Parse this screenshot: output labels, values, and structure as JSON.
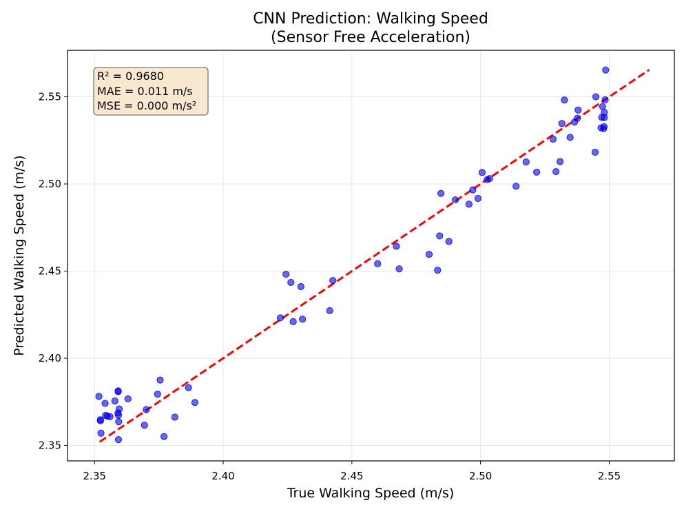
{
  "chart_data": {
    "type": "scatter",
    "title": "CNN Prediction: Walking Speed",
    "subtitle": "(Sensor Free Acceleration)",
    "xlabel": "True Walking Speed (m/s)",
    "ylabel": "Predicted Walking Speed (m/s)",
    "xlim": [
      2.3395,
      2.5753
    ],
    "ylim": [
      2.3411,
      2.5767
    ],
    "xticks": [
      2.35,
      2.4,
      2.45,
      2.5,
      2.55
    ],
    "xtick_labels": [
      "2.35",
      "2.40",
      "2.45",
      "2.50",
      "2.55"
    ],
    "yticks": [
      2.35,
      2.4,
      2.45,
      2.5,
      2.55
    ],
    "ytick_labels": [
      "2.35",
      "2.40",
      "2.45",
      "2.50",
      "2.55"
    ],
    "grid": true,
    "point_color": "#0000ff",
    "point_edge_color": "#0000cc",
    "line_color": "#ff0000",
    "reference_line": {
      "style": "dashed",
      "from": [
        2.352,
        2.352
      ],
      "to": [
        2.5655,
        2.5655
      ]
    },
    "stats_box": [
      "R² = 0.9680",
      "MAE = 0.011 m/s",
      "MSE = 0.000 m/s²"
    ],
    "stats_box_colors": {
      "fill": "#f7e8cf",
      "border": "#777777"
    },
    "points": [
      [
        2.3517,
        2.3781
      ],
      [
        2.3523,
        2.3647
      ],
      [
        2.3523,
        2.3641
      ],
      [
        2.3525,
        2.357
      ],
      [
        2.3541,
        2.3741
      ],
      [
        2.3543,
        2.3672
      ],
      [
        2.355,
        2.3668
      ],
      [
        2.356,
        2.3665
      ],
      [
        2.3579,
        2.3755
      ],
      [
        2.3591,
        2.3686
      ],
      [
        2.3592,
        2.3813
      ],
      [
        2.3592,
        2.3808
      ],
      [
        2.3593,
        2.3673
      ],
      [
        2.3594,
        2.3636
      ],
      [
        2.3596,
        2.3709
      ],
      [
        2.3593,
        2.3533
      ],
      [
        2.363,
        2.3767
      ],
      [
        2.3694,
        2.3616
      ],
      [
        2.3701,
        2.3705
      ],
      [
        2.3745,
        2.3794
      ],
      [
        2.3755,
        2.3875
      ],
      [
        2.377,
        2.3551
      ],
      [
        2.3812,
        2.3662
      ],
      [
        2.3865,
        2.3831
      ],
      [
        2.389,
        2.3746
      ],
      [
        2.4222,
        2.4232
      ],
      [
        2.4244,
        2.4482
      ],
      [
        2.4263,
        2.4435
      ],
      [
        2.4272,
        2.421
      ],
      [
        2.4302,
        2.4411
      ],
      [
        2.4308,
        2.4224
      ],
      [
        2.4414,
        2.4273
      ],
      [
        2.4426,
        2.4446
      ],
      [
        2.46,
        2.4542
      ],
      [
        2.4673,
        2.4643
      ],
      [
        2.4684,
        2.4513
      ],
      [
        2.48,
        2.4596
      ],
      [
        2.4833,
        2.4505
      ],
      [
        2.4841,
        2.4702
      ],
      [
        2.4846,
        2.4946
      ],
      [
        2.4877,
        2.467
      ],
      [
        2.4902,
        2.4909
      ],
      [
        2.4955,
        2.4884
      ],
      [
        2.497,
        2.4966
      ],
      [
        2.499,
        2.4917
      ],
      [
        2.5006,
        2.5066
      ],
      [
        2.5026,
        2.5025
      ],
      [
        2.5035,
        2.5031
      ],
      [
        2.5138,
        2.4987
      ],
      [
        2.5177,
        2.5126
      ],
      [
        2.5218,
        2.5068
      ],
      [
        2.5282,
        2.5257
      ],
      [
        2.5293,
        2.5071
      ],
      [
        2.5309,
        2.5128
      ],
      [
        2.5316,
        2.5347
      ],
      [
        2.5326,
        2.5482
      ],
      [
        2.5348,
        2.5267
      ],
      [
        2.5365,
        2.5355
      ],
      [
        2.5376,
        2.5377
      ],
      [
        2.5379,
        2.5424
      ],
      [
        2.5445,
        2.5182
      ],
      [
        2.5448,
        2.55
      ],
      [
        2.5468,
        2.5322
      ],
      [
        2.5471,
        2.5382
      ],
      [
        2.5474,
        2.5444
      ],
      [
        2.5478,
        2.5318
      ],
      [
        2.548,
        2.5329
      ],
      [
        2.5481,
        2.541
      ],
      [
        2.5481,
        2.5381
      ],
      [
        2.5484,
        2.5483
      ],
      [
        2.5486,
        2.5654
      ]
    ]
  }
}
